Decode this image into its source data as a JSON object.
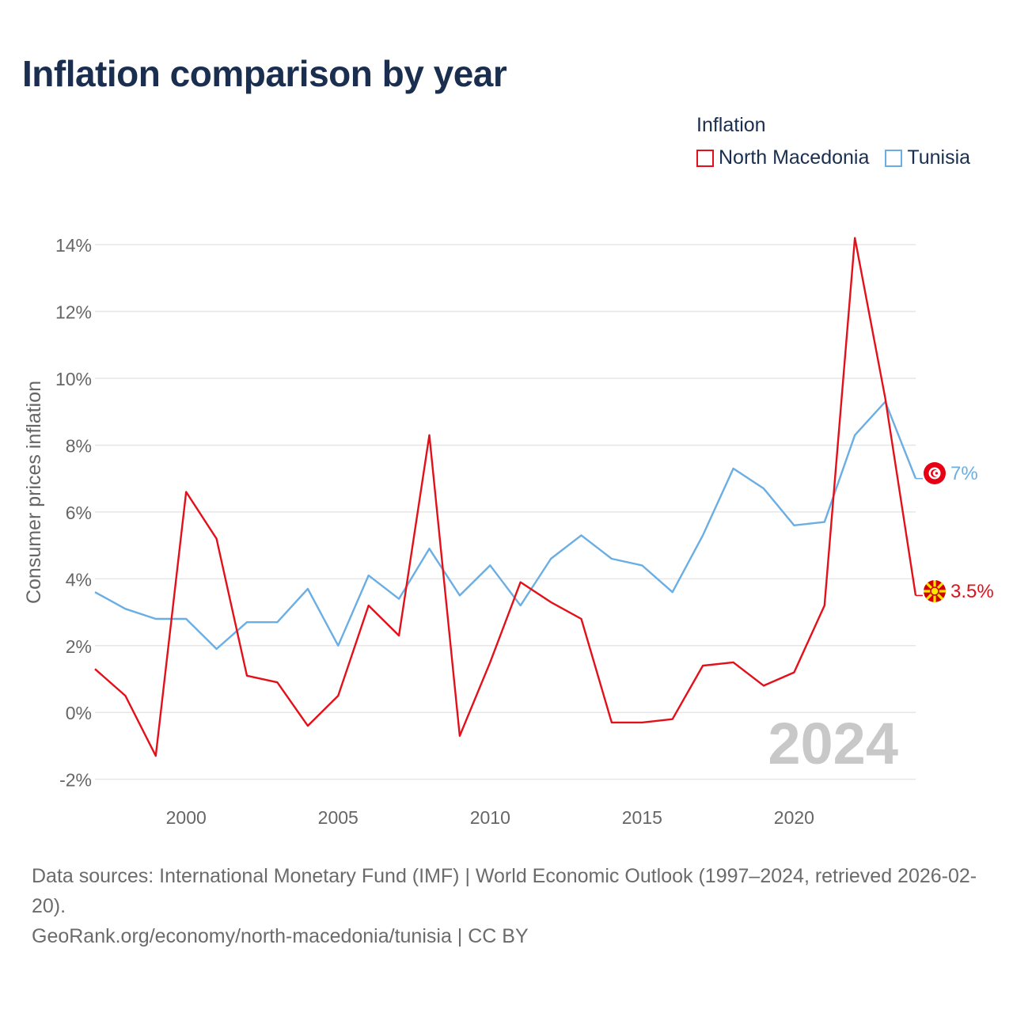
{
  "title": "Inflation comparison by year",
  "legend": {
    "title": "Inflation",
    "items": [
      {
        "label": "North Macedonia",
        "color": "#e3101a"
      },
      {
        "label": "Tunisia",
        "color": "#6aaee3"
      }
    ]
  },
  "watermark_year": "2024",
  "end_labels": {
    "tunisia": "7%",
    "north_macedonia": "3.5%"
  },
  "footer": {
    "sources": "Data sources: International Monetary Fund (IMF) | World Economic Outlook (1997–2024, retrieved 2026-02-20).",
    "credit": "GeoRank.org/economy/north-macedonia/tunisia | CC BY"
  },
  "chart_data": {
    "type": "line",
    "title": "Inflation comparison by year",
    "xlabel": "",
    "ylabel": "Consumer prices inflation",
    "x": [
      1997,
      1998,
      1999,
      2000,
      2001,
      2002,
      2003,
      2004,
      2005,
      2006,
      2007,
      2008,
      2009,
      2010,
      2011,
      2012,
      2013,
      2014,
      2015,
      2016,
      2017,
      2018,
      2019,
      2020,
      2021,
      2022,
      2023,
      2024
    ],
    "xlim": [
      1997,
      2024
    ],
    "ylim": [
      -2.6,
      14.5
    ],
    "x_ticks": [
      2000,
      2005,
      2010,
      2015,
      2020
    ],
    "y_ticks": [
      -2,
      0,
      2,
      4,
      6,
      8,
      10,
      12,
      14
    ],
    "y_tick_labels": [
      "-2%",
      "0%",
      "2%",
      "4%",
      "6%",
      "8%",
      "10%",
      "12%",
      "14%"
    ],
    "grid": true,
    "legend_position": "top-right",
    "series": [
      {
        "name": "North Macedonia",
        "color": "#e3101a",
        "values": [
          1.3,
          0.5,
          -1.3,
          6.6,
          5.2,
          1.1,
          0.9,
          -0.4,
          0.5,
          3.2,
          2.3,
          8.3,
          -0.7,
          1.5,
          3.9,
          3.3,
          2.8,
          -0.3,
          -0.3,
          -0.2,
          1.4,
          1.5,
          0.8,
          1.2,
          3.2,
          14.2,
          9.4,
          3.5
        ]
      },
      {
        "name": "Tunisia",
        "color": "#6aaee3",
        "values": [
          3.6,
          3.1,
          2.8,
          2.8,
          1.9,
          2.7,
          2.7,
          3.7,
          2.0,
          4.1,
          3.4,
          4.9,
          3.5,
          4.4,
          3.2,
          4.6,
          5.3,
          4.6,
          4.4,
          3.6,
          5.3,
          7.3,
          6.7,
          5.6,
          5.7,
          8.3,
          9.3,
          7.0
        ]
      }
    ]
  }
}
